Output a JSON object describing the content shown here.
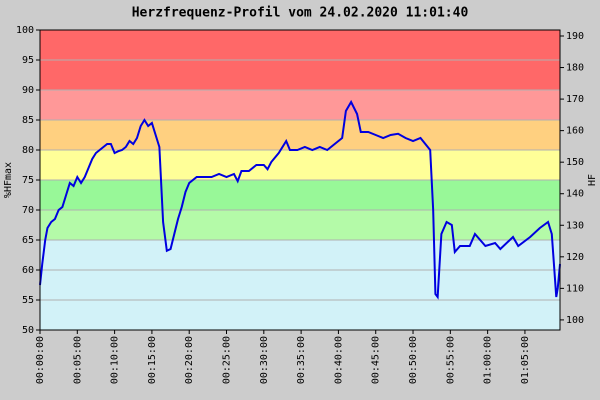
{
  "chart_data": {
    "type": "line",
    "title": "Herzfrequenz-Profil vom 24.02.2020 11:01:40",
    "y_label": "%HFmax",
    "y2_label": "HF",
    "x": [
      0,
      0.3,
      0.7,
      1,
      1.5,
      2,
      2.5,
      3,
      3.5,
      4,
      4.5,
      5,
      5.5,
      6,
      6.5,
      7,
      7.5,
      8,
      8.5,
      9,
      9.5,
      10,
      10.5,
      11,
      11.5,
      12,
      12.5,
      13,
      13.5,
      14,
      14.5,
      15,
      15.5,
      16,
      16.5,
      17,
      17.5,
      18,
      18.5,
      19,
      19.5,
      20,
      21,
      22,
      23,
      24,
      25,
      26,
      26.5,
      27,
      28,
      29,
      30,
      30.5,
      31,
      32,
      33,
      33.5,
      34.5,
      35.5,
      36.5,
      37.5,
      38.5,
      39.5,
      40.5,
      41,
      41.7,
      42.5,
      43,
      44,
      45,
      46,
      47,
      48,
      49,
      50,
      51,
      52.3,
      52.7,
      53,
      53.3,
      53.8,
      54.5,
      55.2,
      55.6,
      56.3,
      57.6,
      58.3,
      59.7,
      61,
      61.7,
      63.4,
      64.1,
      65.7,
      67,
      68.1,
      68.6,
      69.2,
      69.4,
      69.7
    ],
    "series": [
      {
        "name": "HF",
        "color": "#0000e0",
        "values": [
          57.5,
          61,
          65,
          67,
          68,
          68.5,
          70,
          70.5,
          72.5,
          74.5,
          74,
          75.5,
          74.5,
          75.5,
          77,
          78.5,
          79.5,
          80,
          80.5,
          81,
          81,
          79.5,
          79.8,
          80,
          80.5,
          81.5,
          81,
          82,
          84,
          85,
          84,
          84.5,
          82.5,
          80.5,
          68,
          63.2,
          63.5,
          66,
          68.5,
          70.5,
          73,
          74.5,
          75.5,
          75.5,
          75.5,
          76,
          75.5,
          76,
          74.8,
          76.5,
          76.5,
          77.5,
          77.5,
          76.8,
          78,
          79.5,
          81.5,
          80,
          80,
          80.5,
          80,
          80.5,
          80,
          81,
          82,
          86.5,
          88,
          86,
          83,
          83,
          82.5,
          82,
          82.5,
          82.7,
          82,
          81.5,
          82,
          80,
          70,
          56,
          55.5,
          66,
          68,
          67.5,
          63,
          64,
          64,
          66,
          64,
          64.5,
          63.5,
          65.5,
          64,
          65.5,
          67,
          68,
          66,
          55.5,
          57,
          61
        ]
      }
    ],
    "xlim": [
      0,
      69.7
    ],
    "xticks": [
      {
        "value": 0,
        "label": "00:00:00"
      },
      {
        "value": 5,
        "label": "00:05:00"
      },
      {
        "value": 10,
        "label": "00:10:00"
      },
      {
        "value": 15,
        "label": "00:15:00"
      },
      {
        "value": 20,
        "label": "00:20:00"
      },
      {
        "value": 25,
        "label": "00:25:00"
      },
      {
        "value": 30,
        "label": "00:30:00"
      },
      {
        "value": 35,
        "label": "00:35:00"
      },
      {
        "value": 40,
        "label": "00:40:00"
      },
      {
        "value": 45,
        "label": "00:45:00"
      },
      {
        "value": 50,
        "label": "00:50:00"
      },
      {
        "value": 55,
        "label": "00:55:00"
      },
      {
        "value": 60,
        "label": "01:00:00"
      },
      {
        "value": 65,
        "label": "01:05:00"
      }
    ],
    "ylim": [
      50,
      100
    ],
    "yticks": [
      50,
      55,
      60,
      65,
      70,
      75,
      80,
      85,
      90,
      95,
      100
    ],
    "y2lim": [
      96.8,
      191.9
    ],
    "y2ticks": [
      100,
      110,
      120,
      130,
      140,
      150,
      160,
      170,
      180,
      190
    ],
    "grid": true,
    "zones": [
      {
        "from": 50,
        "to": 65,
        "color": "#d2f2f8"
      },
      {
        "from": 65,
        "to": 70,
        "color": "#b4faa8"
      },
      {
        "from": 70,
        "to": 75,
        "color": "#98f898"
      },
      {
        "from": 75,
        "to": 80,
        "color": "#ffff98"
      },
      {
        "from": 80,
        "to": 85,
        "color": "#ffd080"
      },
      {
        "from": 85,
        "to": 90,
        "color": "#ff9898"
      },
      {
        "from": 90,
        "to": 100,
        "color": "#ff6868"
      }
    ]
  }
}
